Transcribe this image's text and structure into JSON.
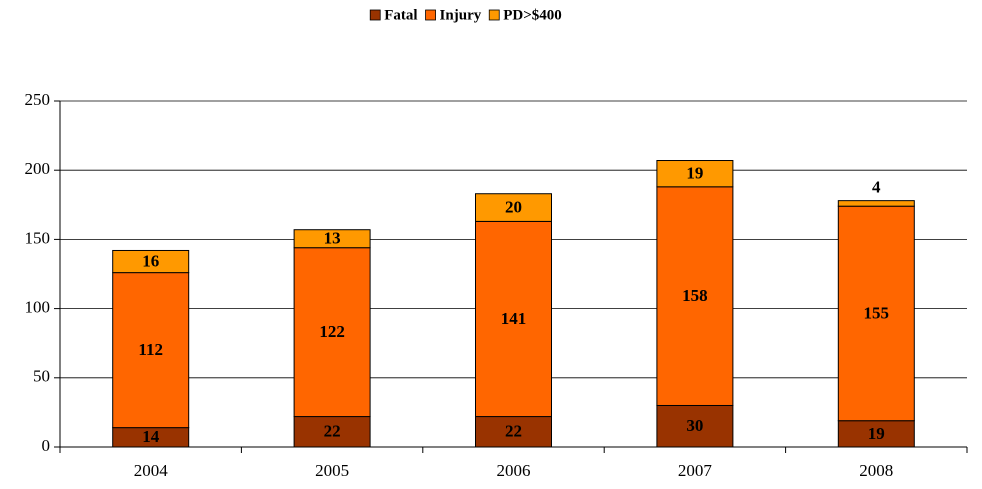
{
  "chart_data": {
    "type": "stacked_bar",
    "categories": [
      "2004",
      "2005",
      "2006",
      "2007",
      "2008"
    ],
    "series": [
      {
        "name": "Fatal",
        "color": "#993300",
        "values": [
          14,
          22,
          22,
          30,
          19
        ]
      },
      {
        "name": "Injury",
        "color": "#ff6600",
        "values": [
          112,
          122,
          141,
          158,
          155
        ]
      },
      {
        "name": "PD>$400",
        "color": "#ff9900",
        "values": [
          16,
          13,
          20,
          19,
          4
        ]
      }
    ],
    "ylim": [
      0,
      250
    ],
    "yticks": [
      0,
      50,
      100,
      150,
      200,
      250
    ],
    "grid": true,
    "legend": "top"
  }
}
